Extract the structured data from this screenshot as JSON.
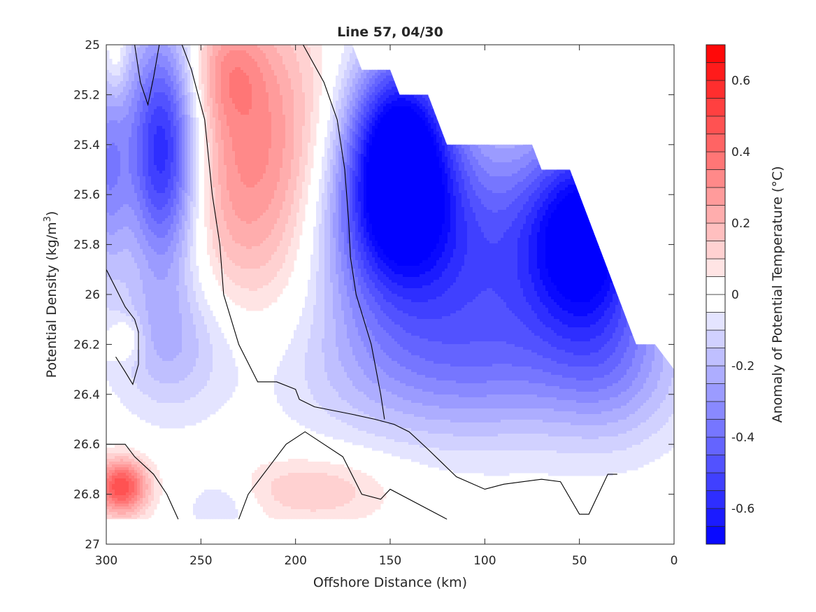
{
  "chart_data": {
    "type": "heatmap",
    "title": "Line 57, 04/30",
    "xlabel": "Offshore Distance (km)",
    "ylabel": "Potential Density (kg/m³)",
    "ylabel_parts": {
      "pre": "Potential Density (kg/m",
      "sup": "3",
      "post": ")"
    },
    "xlim": [
      300,
      0
    ],
    "ylim": [
      25,
      27
    ],
    "x_reversed": true,
    "y_reversed": true,
    "x_ticks": [
      300,
      250,
      200,
      150,
      100,
      50,
      0
    ],
    "y_ticks": [
      25,
      25.2,
      25.4,
      25.6,
      25.8,
      26,
      26.2,
      26.4,
      26.6,
      26.8,
      27
    ],
    "x_tick_labels": [
      "300",
      "250",
      "200",
      "150",
      "100",
      "50",
      "0"
    ],
    "y_tick_labels": [
      "25",
      "25.2",
      "25.4",
      "25.6",
      "25.8",
      "26",
      "26.2",
      "26.4",
      "26.6",
      "26.8",
      "27"
    ],
    "colorbar": {
      "label": "Anomaly of Potential Temperature (°C)",
      "clim": [
        -0.7,
        0.7
      ],
      "levels": [
        -0.7,
        -0.65,
        -0.6,
        -0.55,
        -0.5,
        -0.45,
        -0.4,
        -0.35,
        -0.3,
        -0.25,
        -0.2,
        -0.15,
        -0.1,
        -0.05,
        0,
        0.05,
        0.1,
        0.15,
        0.2,
        0.25,
        0.3,
        0.35,
        0.4,
        0.45,
        0.5,
        0.55,
        0.6,
        0.65,
        0.7
      ],
      "ticks": [
        -0.6,
        -0.4,
        -0.2,
        0,
        0.2,
        0.4,
        0.6
      ],
      "tick_labels": [
        "-0.6",
        "-0.4",
        "-0.2",
        "0",
        "0.2",
        "0.4",
        "0.6"
      ],
      "colormap": "blue-white-red",
      "color_negative": "#0000ff",
      "color_zero": "#ffffff",
      "color_positive": "#ff0000"
    },
    "data_domain": {
      "x_range": [
        300,
        0
      ],
      "y_range": [
        25,
        26.9
      ],
      "upper_boundary": [
        [
          170,
          25
        ],
        [
          165,
          25.1
        ],
        [
          150,
          25.1
        ],
        [
          145,
          25.2
        ],
        [
          130,
          25.2
        ],
        [
          120,
          25.4
        ],
        [
          75,
          25.4
        ],
        [
          70,
          25.5
        ],
        [
          55,
          25.5
        ],
        [
          20,
          26.2
        ],
        [
          10,
          26.2
        ],
        [
          0,
          26.3
        ]
      ]
    },
    "features": [
      {
        "kind": "warm",
        "x": 295,
        "y": 25.05,
        "sx": 4,
        "sy": 0.12,
        "value": 0.12
      },
      {
        "kind": "cold",
        "x": 270,
        "y": 25.42,
        "sx": 14,
        "sy": 0.35,
        "value": -0.66
      },
      {
        "kind": "cold",
        "x": 300,
        "y": 25.5,
        "sx": 8,
        "sy": 0.3,
        "value": -0.3
      },
      {
        "kind": "warm",
        "x": 222,
        "y": 25.45,
        "sx": 30,
        "sy": 0.42,
        "value": 0.33
      },
      {
        "kind": "warm",
        "x": 236,
        "y": 25.1,
        "sx": 14,
        "sy": 0.15,
        "value": 0.15
      },
      {
        "kind": "cold",
        "x": 145,
        "y": 25.4,
        "sx": 20,
        "sy": 0.28,
        "value": -0.7
      },
      {
        "kind": "cold",
        "x": 150,
        "y": 25.75,
        "sx": 28,
        "sy": 0.28,
        "value": -0.38
      },
      {
        "kind": "cold",
        "x": 45,
        "y": 25.75,
        "sx": 22,
        "sy": 0.28,
        "value": -0.62
      },
      {
        "kind": "cold",
        "x": 90,
        "y": 25.85,
        "sx": 45,
        "sy": 0.35,
        "value": -0.38
      },
      {
        "kind": "cold",
        "x": 120,
        "y": 26.3,
        "sx": 60,
        "sy": 0.22,
        "value": -0.22
      },
      {
        "kind": "cold",
        "x": 30,
        "y": 26.3,
        "sx": 25,
        "sy": 0.22,
        "value": -0.18
      },
      {
        "kind": "cold",
        "x": 265,
        "y": 26.2,
        "sx": 22,
        "sy": 0.2,
        "value": -0.18
      },
      {
        "kind": "cold",
        "x": 240,
        "y": 26.85,
        "sx": 12,
        "sy": 0.08,
        "value": -0.12
      },
      {
        "kind": "warm",
        "x": 292,
        "y": 26.77,
        "sx": 10,
        "sy": 0.08,
        "value": 0.5
      },
      {
        "kind": "warm",
        "x": 290,
        "y": 26.18,
        "sx": 6,
        "sy": 0.06,
        "value": 0.15
      },
      {
        "kind": "warm",
        "x": 190,
        "y": 26.78,
        "sx": 30,
        "sy": 0.1,
        "value": 0.15
      },
      {
        "kind": "warm",
        "x": 90,
        "y": 26.88,
        "sx": 20,
        "sy": 0.04,
        "value": 0.06
      }
    ],
    "zero_contours": [
      [
        [
          285,
          25
        ],
        [
          282,
          25.15
        ],
        [
          278,
          25.24
        ],
        [
          275,
          25.13
        ],
        [
          272,
          25
        ]
      ],
      [
        [
          260,
          25
        ],
        [
          255,
          25.1
        ],
        [
          248,
          25.3
        ],
        [
          244,
          25.6
        ],
        [
          240,
          25.8
        ],
        [
          238,
          26
        ],
        [
          230,
          26.2
        ],
        [
          220,
          26.35
        ],
        [
          210,
          26.35
        ],
        [
          200,
          26.38
        ],
        [
          198,
          26.42
        ],
        [
          190,
          26.45
        ],
        [
          170,
          26.48
        ],
        [
          158,
          26.5
        ],
        [
          148,
          26.52
        ],
        [
          140,
          26.55
        ],
        [
          130,
          26.62
        ],
        [
          115,
          26.73
        ],
        [
          100,
          26.78
        ],
        [
          90,
          26.76
        ],
        [
          70,
          26.74
        ],
        [
          60,
          26.75
        ],
        [
          50,
          26.88
        ],
        [
          45,
          26.88
        ],
        [
          35,
          26.72
        ],
        [
          30,
          26.72
        ]
      ],
      [
        [
          230,
          26.9
        ],
        [
          225,
          26.8
        ],
        [
          220,
          26.75
        ],
        [
          215,
          26.7
        ],
        [
          205,
          26.6
        ],
        [
          195,
          26.55
        ],
        [
          185,
          26.6
        ],
        [
          175,
          26.65
        ],
        [
          165,
          26.8
        ],
        [
          155,
          26.82
        ],
        [
          150,
          26.78
        ],
        [
          120,
          26.9
        ]
      ],
      [
        [
          196,
          25
        ],
        [
          185,
          25.15
        ],
        [
          178,
          25.3
        ],
        [
          174,
          25.5
        ],
        [
          172,
          25.7
        ],
        [
          171,
          25.85
        ],
        [
          168,
          26
        ],
        [
          160,
          26.2
        ],
        [
          155,
          26.4
        ],
        [
          153,
          26.5
        ]
      ],
      [
        [
          300,
          25.9
        ],
        [
          290,
          26.05
        ],
        [
          285,
          26.1
        ],
        [
          283,
          26.15
        ],
        [
          283,
          26.28
        ],
        [
          286,
          26.36
        ],
        [
          290,
          26.31
        ],
        [
          295,
          26.25
        ]
      ],
      [
        [
          300,
          26.6
        ],
        [
          290,
          26.6
        ],
        [
          285,
          26.65
        ],
        [
          275,
          26.72
        ],
        [
          268,
          26.8
        ],
        [
          262,
          26.9
        ]
      ]
    ]
  }
}
